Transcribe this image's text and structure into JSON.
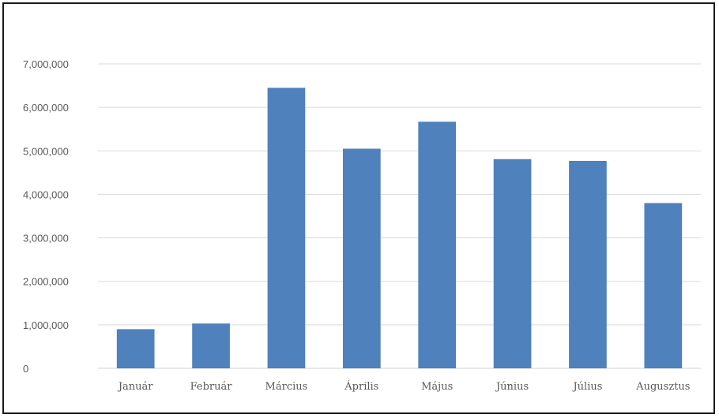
{
  "chart_data": {
    "type": "bar",
    "categories": [
      "Január",
      "Február",
      "Március",
      "Április",
      "Május",
      "Június",
      "Július",
      "Augusztus"
    ],
    "series": [
      {
        "values": [
          900000,
          1030000,
          6450000,
          5050000,
          5670000,
          4810000,
          4770000,
          3800000
        ]
      }
    ],
    "yticks": [
      "0",
      "1,000,000",
      "2,000,000",
      "3,000,000",
      "4,000,000",
      "5,000,000",
      "6,000,000",
      "7,000,000"
    ],
    "ylim": [
      0,
      7000000
    ],
    "grid": true,
    "legend": "none",
    "colors": {
      "bar": "#4f81bd",
      "grid": "#d9d9d9",
      "text": "#595959",
      "frame": "#1a1a1a"
    }
  }
}
